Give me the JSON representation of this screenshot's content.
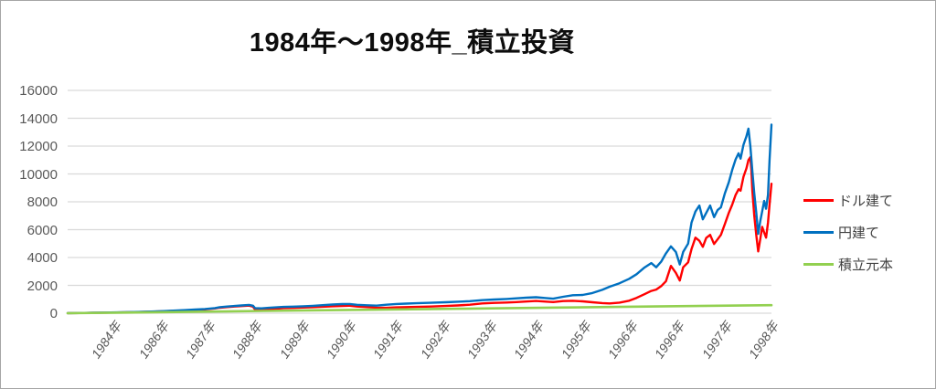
{
  "chart_data": {
    "type": "line",
    "title": "1984年～1998年_積立投資",
    "x_start": 1984.0,
    "x_end": 1998.35,
    "ylim": [
      0,
      16000
    ],
    "y_ticks": [
      0,
      2000,
      4000,
      6000,
      8000,
      10000,
      12000,
      14000,
      16000
    ],
    "x_tick_labels": [
      "1984年",
      "1986年",
      "1987年",
      "1988年",
      "1989年",
      "1990年",
      "1991年",
      "1992年",
      "1993年",
      "1994年",
      "1995年",
      "1996年",
      "1996年",
      "1997年",
      "1998年"
    ],
    "grid": true,
    "legend_position": "right",
    "series": [
      {
        "name": "ドル建て",
        "color": "#FF0000",
        "points": [
          [
            1984.0,
            4
          ],
          [
            1984.25,
            13
          ],
          [
            1984.5,
            27
          ],
          [
            1984.75,
            40
          ],
          [
            1985.0,
            55
          ],
          [
            1985.25,
            72
          ],
          [
            1985.45,
            86
          ],
          [
            1985.7,
            110
          ],
          [
            1985.9,
            132
          ],
          [
            1986.15,
            170
          ],
          [
            1986.4,
            205
          ],
          [
            1986.6,
            238
          ],
          [
            1986.8,
            275
          ],
          [
            1987.0,
            340
          ],
          [
            1987.1,
            395
          ],
          [
            1987.25,
            440
          ],
          [
            1987.4,
            480
          ],
          [
            1987.55,
            510
          ],
          [
            1987.7,
            545
          ],
          [
            1987.78,
            470
          ],
          [
            1987.82,
            260
          ],
          [
            1987.95,
            240
          ],
          [
            1988.1,
            290
          ],
          [
            1988.25,
            330
          ],
          [
            1988.4,
            365
          ],
          [
            1988.6,
            380
          ],
          [
            1988.8,
            405
          ],
          [
            1989.0,
            430
          ],
          [
            1989.2,
            465
          ],
          [
            1989.4,
            500
          ],
          [
            1989.6,
            525
          ],
          [
            1989.75,
            535
          ],
          [
            1989.9,
            480
          ],
          [
            1990.1,
            440
          ],
          [
            1990.3,
            400
          ],
          [
            1990.5,
            390
          ],
          [
            1990.7,
            420
          ],
          [
            1990.9,
            440
          ],
          [
            1991.1,
            455
          ],
          [
            1991.4,
            480
          ],
          [
            1991.7,
            520
          ],
          [
            1991.95,
            560
          ],
          [
            1992.2,
            610
          ],
          [
            1992.45,
            700
          ],
          [
            1992.7,
            740
          ],
          [
            1992.95,
            770
          ],
          [
            1993.15,
            800
          ],
          [
            1993.35,
            840
          ],
          [
            1993.55,
            880
          ],
          [
            1993.75,
            830
          ],
          [
            1993.9,
            800
          ],
          [
            1994.1,
            870
          ],
          [
            1994.3,
            890
          ],
          [
            1994.5,
            850
          ],
          [
            1994.7,
            790
          ],
          [
            1994.9,
            730
          ],
          [
            1995.05,
            700
          ],
          [
            1995.25,
            760
          ],
          [
            1995.45,
            900
          ],
          [
            1995.6,
            1100
          ],
          [
            1995.75,
            1350
          ],
          [
            1995.9,
            1600
          ],
          [
            1996.0,
            1700
          ],
          [
            1996.1,
            1940
          ],
          [
            1996.2,
            2300
          ],
          [
            1996.3,
            3400
          ],
          [
            1996.4,
            2900
          ],
          [
            1996.48,
            2350
          ],
          [
            1996.55,
            3300
          ],
          [
            1996.65,
            3650
          ],
          [
            1996.72,
            4600
          ],
          [
            1996.8,
            5430
          ],
          [
            1996.88,
            5200
          ],
          [
            1996.95,
            4770
          ],
          [
            1997.02,
            5400
          ],
          [
            1997.1,
            5625
          ],
          [
            1997.18,
            4970
          ],
          [
            1997.25,
            5300
          ],
          [
            1997.32,
            5625
          ],
          [
            1997.4,
            6400
          ],
          [
            1997.48,
            7200
          ],
          [
            1997.55,
            7800
          ],
          [
            1997.62,
            8500
          ],
          [
            1997.68,
            8900
          ],
          [
            1997.72,
            8800
          ],
          [
            1997.78,
            9800
          ],
          [
            1997.84,
            10400
          ],
          [
            1997.88,
            11000
          ],
          [
            1997.92,
            11200
          ],
          [
            1997.94,
            10300
          ],
          [
            1997.96,
            8800
          ],
          [
            1998.0,
            7000
          ],
          [
            1998.04,
            5600
          ],
          [
            1998.08,
            4440
          ],
          [
            1998.12,
            5300
          ],
          [
            1998.16,
            6200
          ],
          [
            1998.2,
            5800
          ],
          [
            1998.24,
            5430
          ],
          [
            1998.28,
            6500
          ],
          [
            1998.31,
            7800
          ],
          [
            1998.35,
            9300
          ]
        ]
      },
      {
        "name": "円建て",
        "color": "#0070C0",
        "points": [
          [
            1984.0,
            5
          ],
          [
            1984.25,
            15
          ],
          [
            1984.5,
            30
          ],
          [
            1984.75,
            45
          ],
          [
            1985.0,
            62
          ],
          [
            1985.25,
            80
          ],
          [
            1985.45,
            95
          ],
          [
            1985.7,
            120
          ],
          [
            1985.9,
            145
          ],
          [
            1986.15,
            185
          ],
          [
            1986.4,
            225
          ],
          [
            1986.6,
            260
          ],
          [
            1986.8,
            300
          ],
          [
            1987.0,
            370
          ],
          [
            1987.1,
            430
          ],
          [
            1987.25,
            480
          ],
          [
            1987.4,
            520
          ],
          [
            1987.55,
            555
          ],
          [
            1987.7,
            595
          ],
          [
            1987.78,
            540
          ],
          [
            1987.82,
            370
          ],
          [
            1987.95,
            350
          ],
          [
            1988.1,
            390
          ],
          [
            1988.25,
            420
          ],
          [
            1988.4,
            455
          ],
          [
            1988.6,
            470
          ],
          [
            1988.8,
            500
          ],
          [
            1989.0,
            530
          ],
          [
            1989.2,
            575
          ],
          [
            1989.4,
            625
          ],
          [
            1989.6,
            655
          ],
          [
            1989.75,
            665
          ],
          [
            1989.9,
            600
          ],
          [
            1990.1,
            570
          ],
          [
            1990.3,
            545
          ],
          [
            1990.5,
            610
          ],
          [
            1990.7,
            660
          ],
          [
            1990.9,
            690
          ],
          [
            1991.1,
            715
          ],
          [
            1991.4,
            750
          ],
          [
            1991.7,
            790
          ],
          [
            1991.95,
            825
          ],
          [
            1992.2,
            865
          ],
          [
            1992.45,
            935
          ],
          [
            1992.7,
            985
          ],
          [
            1992.95,
            1020
          ],
          [
            1993.15,
            1070
          ],
          [
            1993.35,
            1115
          ],
          [
            1993.55,
            1150
          ],
          [
            1993.75,
            1090
          ],
          [
            1993.9,
            1040
          ],
          [
            1994.1,
            1180
          ],
          [
            1994.3,
            1290
          ],
          [
            1994.5,
            1310
          ],
          [
            1994.7,
            1450
          ],
          [
            1994.9,
            1680
          ],
          [
            1995.05,
            1900
          ],
          [
            1995.25,
            2150
          ],
          [
            1995.45,
            2470
          ],
          [
            1995.6,
            2800
          ],
          [
            1995.75,
            3250
          ],
          [
            1995.9,
            3600
          ],
          [
            1996.0,
            3300
          ],
          [
            1996.1,
            3700
          ],
          [
            1996.2,
            4300
          ],
          [
            1996.3,
            4800
          ],
          [
            1996.4,
            4400
          ],
          [
            1996.48,
            3500
          ],
          [
            1996.55,
            4400
          ],
          [
            1996.65,
            5000
          ],
          [
            1996.72,
            6500
          ],
          [
            1996.8,
            7300
          ],
          [
            1996.88,
            7730
          ],
          [
            1996.95,
            6740
          ],
          [
            1997.02,
            7200
          ],
          [
            1997.1,
            7730
          ],
          [
            1997.18,
            6900
          ],
          [
            1997.25,
            7400
          ],
          [
            1997.32,
            7600
          ],
          [
            1997.4,
            8600
          ],
          [
            1997.48,
            9400
          ],
          [
            1997.55,
            10300
          ],
          [
            1997.62,
            11050
          ],
          [
            1997.68,
            11480
          ],
          [
            1997.72,
            11100
          ],
          [
            1997.78,
            12100
          ],
          [
            1997.84,
            12700
          ],
          [
            1997.88,
            13250
          ],
          [
            1997.92,
            12000
          ],
          [
            1997.96,
            10200
          ],
          [
            1998.0,
            8600
          ],
          [
            1998.04,
            7200
          ],
          [
            1998.08,
            5700
          ],
          [
            1998.12,
            6600
          ],
          [
            1998.16,
            7300
          ],
          [
            1998.2,
            8060
          ],
          [
            1998.24,
            7500
          ],
          [
            1998.28,
            8500
          ],
          [
            1998.31,
            11000
          ],
          [
            1998.35,
            13550
          ]
        ]
      },
      {
        "name": "積立元本",
        "color": "#92D050",
        "points": [
          [
            1984.0,
            0
          ],
          [
            1986.0,
            80
          ],
          [
            1988.0,
            162
          ],
          [
            1990.0,
            243
          ],
          [
            1992.0,
            324
          ],
          [
            1994.0,
            405
          ],
          [
            1996.0,
            486
          ],
          [
            1998.35,
            580
          ]
        ]
      }
    ]
  },
  "legend": {
    "items": [
      "ドル建て",
      "円建て",
      "積立元本"
    ]
  },
  "colors": {
    "grid": "#D9D9D9",
    "axis_text": "#595959",
    "legend_text": "#404040",
    "border": "#A6A6A6"
  }
}
